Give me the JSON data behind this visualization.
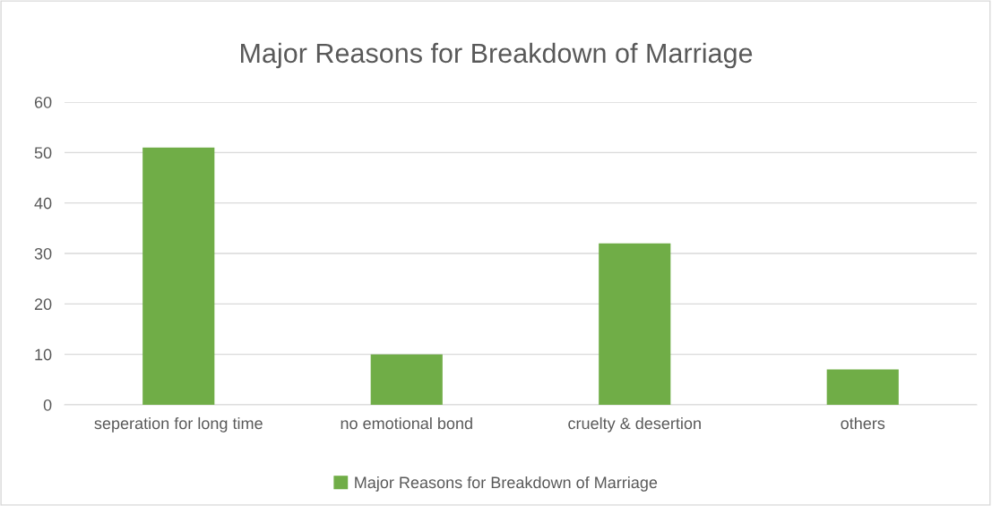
{
  "chart_data": {
    "type": "bar",
    "title": "Major Reasons for Breakdown of Marriage",
    "categories": [
      "seperation for long time",
      "no emotional bond",
      "cruelty & desertion",
      "others"
    ],
    "series": [
      {
        "name": "Major Reasons for Breakdown of Marriage",
        "color": "#70ad47",
        "values": [
          51,
          10,
          32,
          7
        ]
      }
    ],
    "ylim": [
      0,
      60
    ],
    "yticks": [
      0,
      10,
      20,
      30,
      40,
      50,
      60
    ],
    "grid": "y",
    "legend": "bottom"
  }
}
